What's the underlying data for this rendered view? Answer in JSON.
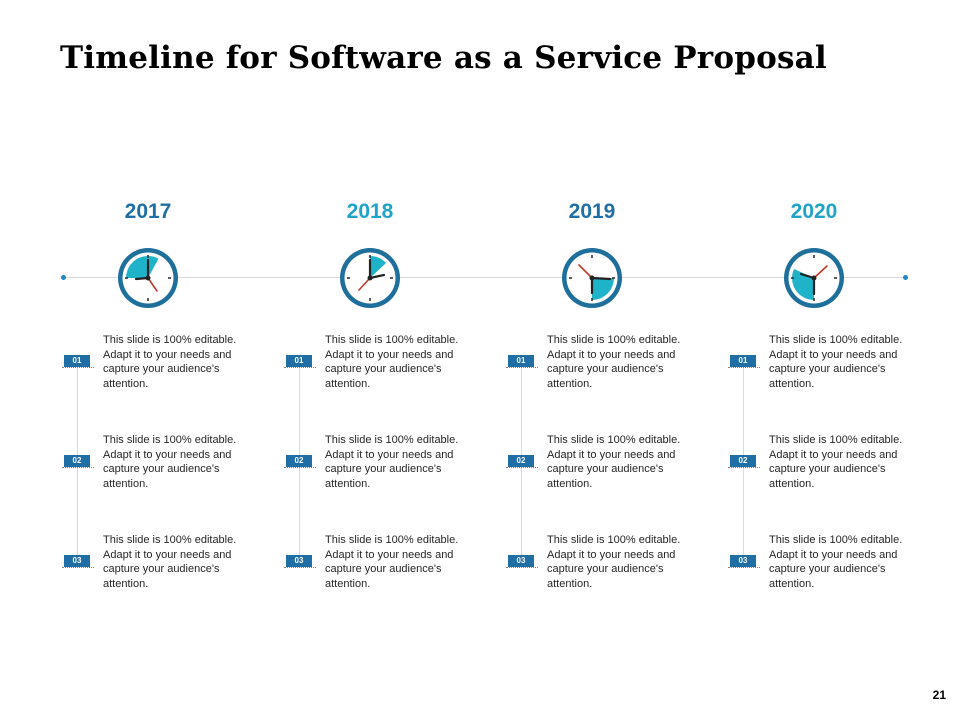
{
  "title": "Timeline for Software as a Service Proposal",
  "page_number": "21",
  "colors": {
    "accent_dark": "#1f6fa6",
    "accent_light": "#1fb3c9",
    "clock_ring": "#1e6f9c",
    "hand_red": "#c0392b"
  },
  "columns": [
    {
      "year": "2017",
      "year_color": "#1f6fa6",
      "items": [
        {
          "num": "01",
          "text": "This slide is 100% editable. Adapt it to your needs and capture your audience's attention."
        },
        {
          "num": "02",
          "text": "This slide is 100% editable. Adapt it to your needs and capture your audience's attention."
        },
        {
          "num": "03",
          "text": "This slide is 100% editable. Adapt it to your needs and capture your audience's attention."
        }
      ]
    },
    {
      "year": "2018",
      "year_color": "#1fa3c9",
      "items": [
        {
          "num": "01",
          "text": "This slide is 100% editable. Adapt it to your needs and capture your audience's attention."
        },
        {
          "num": "02",
          "text": "This slide is 100% editable. Adapt it to your needs and capture your audience's attention."
        },
        {
          "num": "03",
          "text": "This slide is 100% editable. Adapt it to your needs and capture your audience's attention."
        }
      ]
    },
    {
      "year": "2019",
      "year_color": "#1f6fa6",
      "items": [
        {
          "num": "01",
          "text": "This slide is 100% editable. Adapt it to your needs and capture your audience's attention."
        },
        {
          "num": "02",
          "text": "This slide is 100% editable. Adapt it to your needs and capture your audience's attention."
        },
        {
          "num": "03",
          "text": "This slide is 100% editable. Adapt it to your needs and capture your audience's attention."
        }
      ]
    },
    {
      "year": "2020",
      "year_color": "#1fa3c9",
      "items": [
        {
          "num": "01",
          "text": "This slide is 100% editable. Adapt it to your needs and capture your audience's attention."
        },
        {
          "num": "02",
          "text": "This slide is 100% editable. Adapt it to your needs and capture your audience's attention."
        },
        {
          "num": "03",
          "text": "This slide is 100% editable. Adapt it to your needs and capture your audience's attention."
        }
      ]
    }
  ]
}
